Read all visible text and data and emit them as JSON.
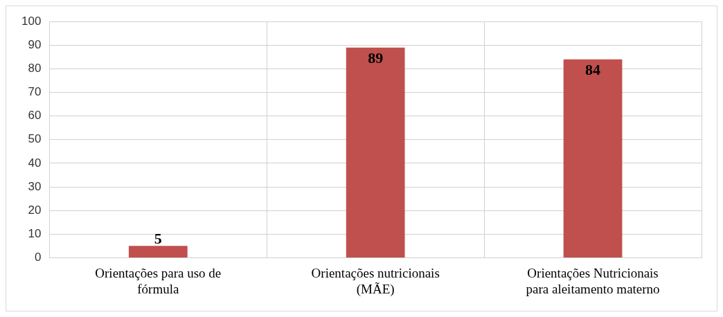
{
  "chart_data": {
    "type": "bar",
    "categories": [
      "Orientações para uso de fórmula",
      "Orientações nutricionais (MÃE)",
      "Orientações Nutricionais para aleitamento materno"
    ],
    "values": [
      5,
      89,
      84
    ],
    "color": "#c0504d",
    "ylim": [
      0,
      100
    ],
    "yticks": [
      0,
      10,
      20,
      30,
      40,
      50,
      60,
      70,
      80,
      90,
      100
    ],
    "grid": true,
    "data_labels": true
  }
}
